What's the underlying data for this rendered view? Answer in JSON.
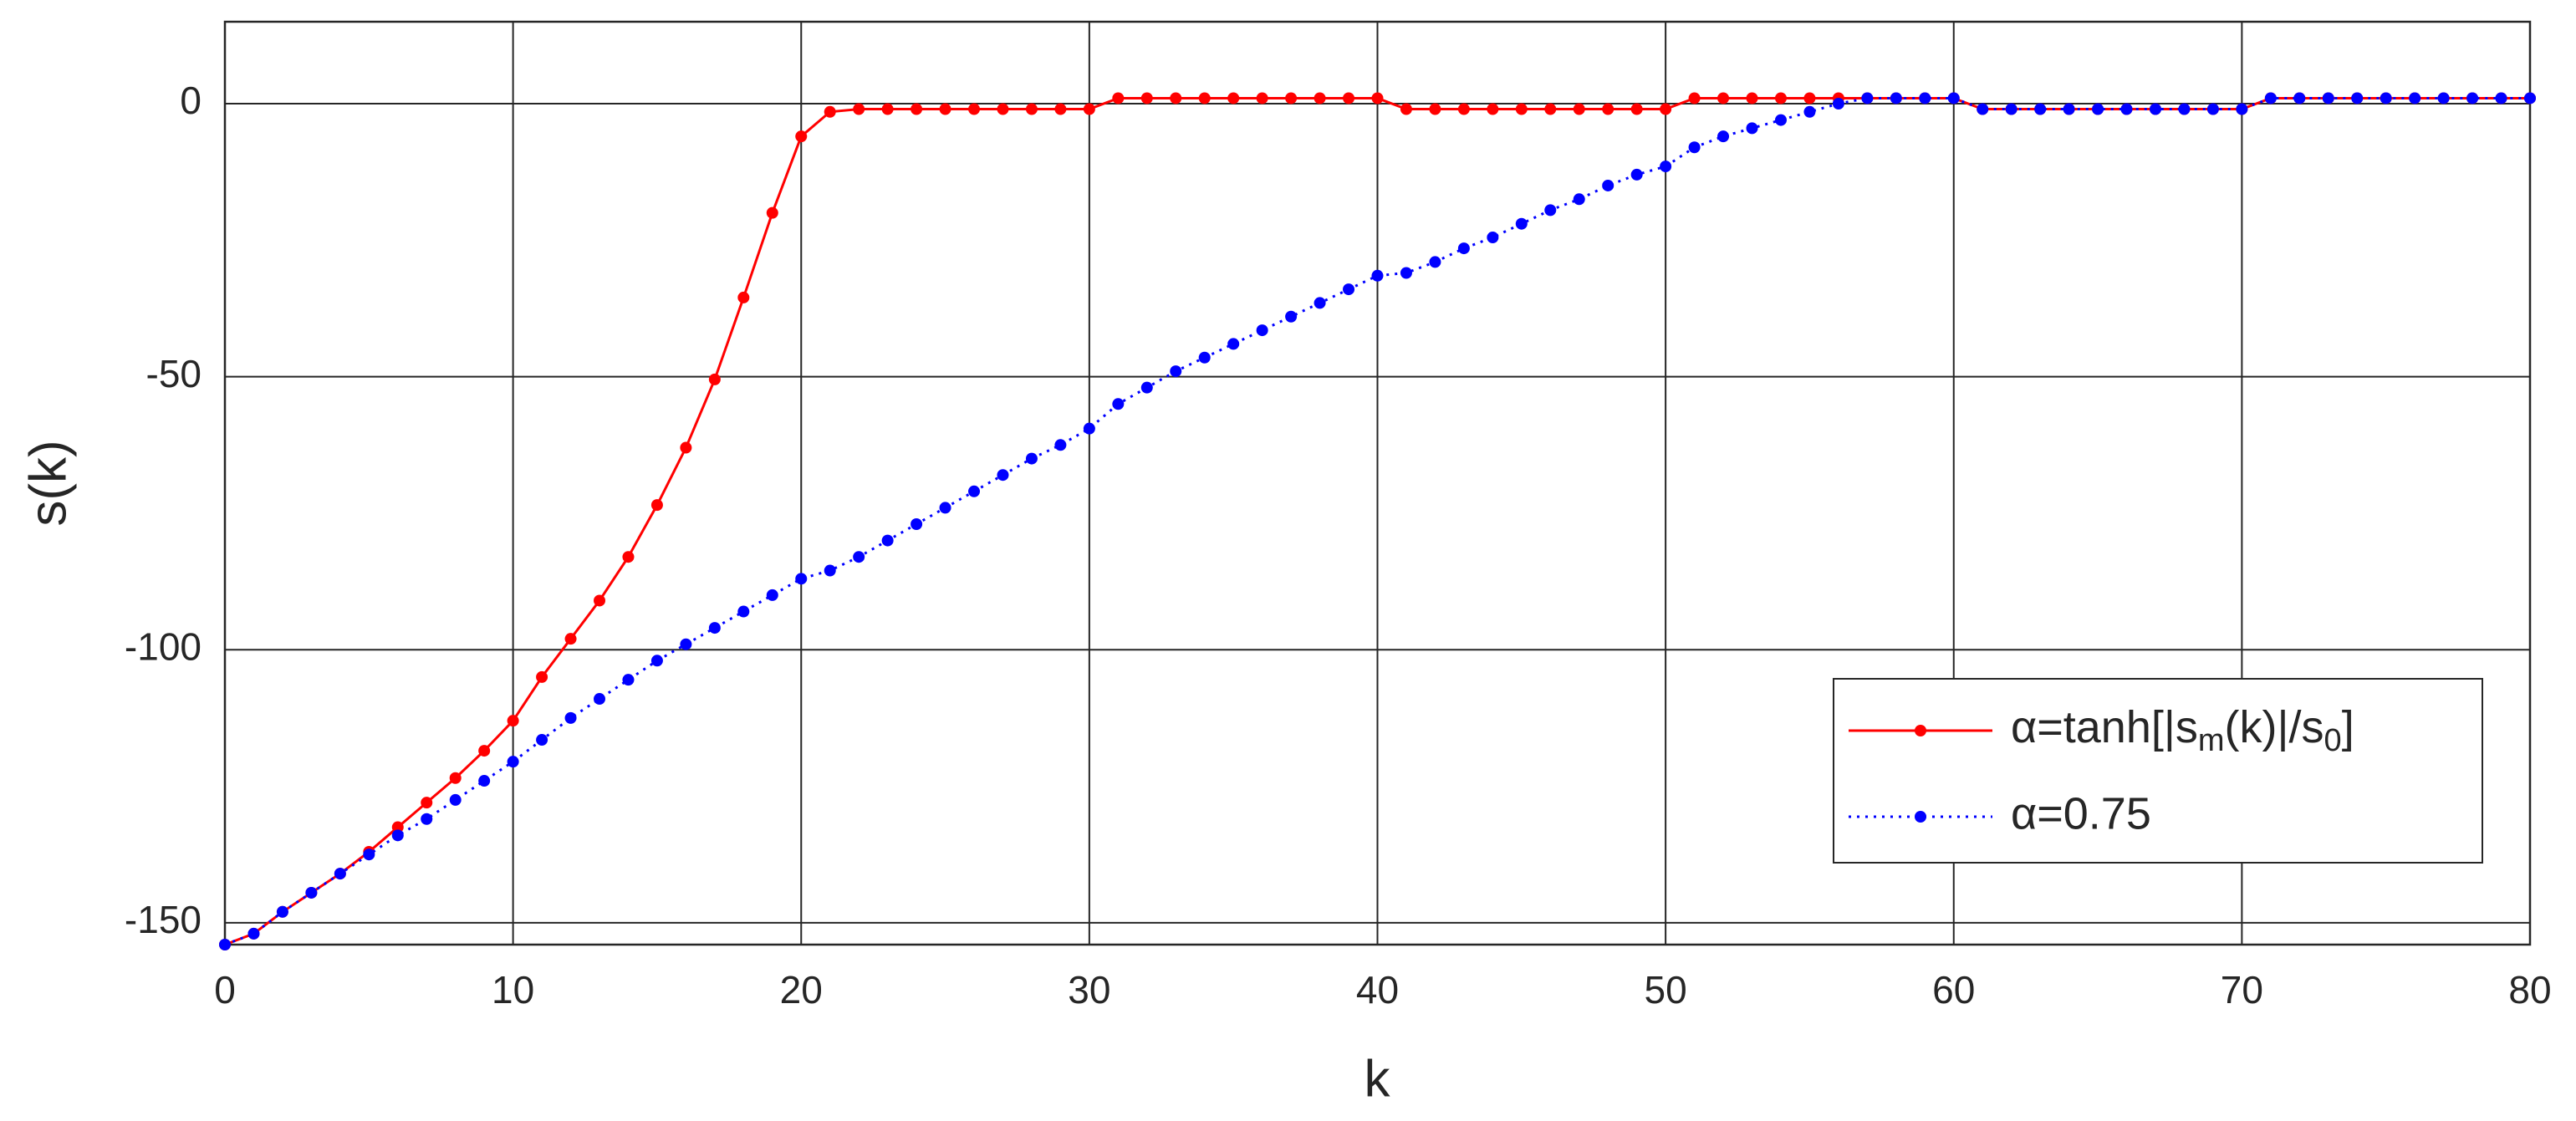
{
  "chart_data": {
    "type": "line",
    "xlabel": "k",
    "ylabel": "s(k)",
    "x": [
      0,
      1,
      2,
      3,
      4,
      5,
      6,
      7,
      8,
      9,
      10,
      11,
      12,
      13,
      14,
      15,
      16,
      17,
      18,
      19,
      20,
      21,
      22,
      23,
      24,
      25,
      26,
      27,
      28,
      29,
      30,
      31,
      32,
      33,
      34,
      35,
      36,
      37,
      38,
      39,
      40,
      41,
      42,
      43,
      44,
      45,
      46,
      47,
      48,
      49,
      50,
      51,
      52,
      53,
      54,
      55,
      56,
      57,
      58,
      59,
      60,
      61,
      62,
      63,
      64,
      65,
      66,
      67,
      68,
      69,
      70,
      71,
      72,
      73,
      74,
      75,
      76,
      77,
      78,
      79,
      80
    ],
    "series": [
      {
        "name": "α=tanh[|s_m(k)|/s_0]",
        "color": "#ff0000",
        "linestyle": "solid",
        "values": [
          -154,
          -152,
          -148,
          -144.5,
          -141,
          -137,
          -132.5,
          -128,
          -123.5,
          -118.5,
          -113,
          -105,
          -98,
          -91,
          -83,
          -73.5,
          -63,
          -50.5,
          -35.5,
          -20,
          -6,
          -1.5,
          -1,
          -1,
          -1,
          -1,
          -1,
          -1,
          -1,
          -1,
          -1,
          1,
          1,
          1,
          1,
          1,
          1,
          1,
          1,
          1,
          1,
          -1,
          -1,
          -1,
          -1,
          -1,
          -1,
          -1,
          -1,
          -1,
          -1,
          1,
          1,
          1,
          1,
          1,
          1,
          1,
          1,
          1,
          1,
          -1,
          -1,
          -1,
          -1,
          -1,
          -1,
          -1,
          -1,
          -1,
          -1,
          1,
          1,
          1,
          1,
          1,
          1,
          1,
          1,
          1,
          1
        ]
      },
      {
        "name": "α=0.75",
        "color": "#0000ff",
        "linestyle": "dotted",
        "values": [
          -154,
          -152,
          -148,
          -144.5,
          -141,
          -137.5,
          -134,
          -131,
          -127.5,
          -124,
          -120.5,
          -116.5,
          -112.5,
          -109,
          -105.5,
          -102,
          -99,
          -96,
          -93,
          -90,
          -87,
          -85.5,
          -83,
          -80,
          -77,
          -74,
          -71,
          -68,
          -65,
          -62.5,
          -59.5,
          -55,
          -52,
          -49,
          -46.5,
          -44,
          -41.5,
          -39,
          -36.5,
          -34,
          -31.5,
          -31,
          -29,
          -26.5,
          -24.5,
          -22,
          -19.5,
          -17.5,
          -15,
          -13,
          -11.5,
          -8,
          -6,
          -4.5,
          -3,
          -1.5,
          0,
          1,
          1,
          1,
          1,
          -1,
          -1,
          -1,
          -1,
          -1,
          -1,
          -1,
          -1,
          -1,
          -1,
          1,
          1,
          1,
          1,
          1,
          1,
          1,
          1,
          1,
          1
        ]
      }
    ],
    "xlim": [
      0,
      80
    ],
    "ylim": [
      -154,
      15
    ],
    "xticks": [
      0,
      10,
      20,
      30,
      40,
      50,
      60,
      70,
      80
    ],
    "yticks": [
      -150,
      -100,
      -50,
      0
    ],
    "grid": true,
    "legend": "lower right"
  }
}
